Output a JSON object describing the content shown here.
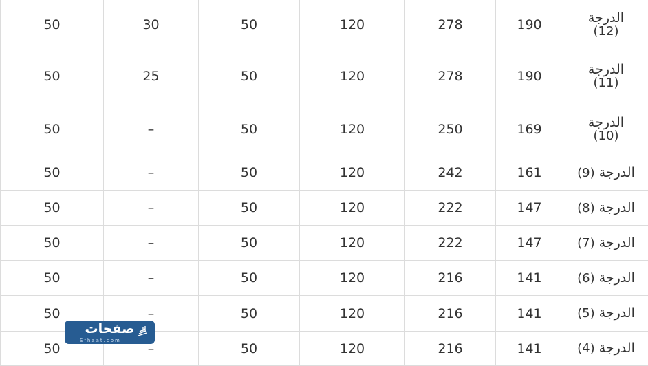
{
  "table": {
    "rows": [
      {
        "grade_word": "الدرجة",
        "grade_num": "(12)",
        "values": [
          "190",
          "278",
          "120",
          "50",
          "30",
          "50"
        ]
      },
      {
        "grade_word": "الدرجة",
        "grade_num": "(11)",
        "values": [
          "190",
          "278",
          "120",
          "50",
          "25",
          "50"
        ]
      },
      {
        "grade_word": "الدرجة",
        "grade_num": "(10)",
        "values": [
          "169",
          "250",
          "120",
          "50",
          "–",
          "50"
        ]
      },
      {
        "grade_word": "الدرجة",
        "grade_num": "(9)",
        "values": [
          "161",
          "242",
          "120",
          "50",
          "–",
          "50"
        ]
      },
      {
        "grade_word": "الدرجة",
        "grade_num": "(8)",
        "values": [
          "147",
          "222",
          "120",
          "50",
          "–",
          "50"
        ]
      },
      {
        "grade_word": "الدرجة",
        "grade_num": "(7)",
        "values": [
          "147",
          "222",
          "120",
          "50",
          "–",
          "50"
        ]
      },
      {
        "grade_word": "الدرجة",
        "grade_num": "(6)",
        "values": [
          "141",
          "216",
          "120",
          "50",
          "–",
          "50"
        ]
      },
      {
        "grade_word": "الدرجة",
        "grade_num": "(5)",
        "values": [
          "141",
          "216",
          "120",
          "50",
          "–",
          "50"
        ]
      },
      {
        "grade_word": "الدرجة",
        "grade_num": "(4)",
        "values": [
          "141",
          "216",
          "120",
          "50",
          "–",
          "50"
        ]
      }
    ]
  },
  "watermark": {
    "name_ar": "صفحات",
    "domain": "Sfhaat.com",
    "color": "#275c92"
  }
}
